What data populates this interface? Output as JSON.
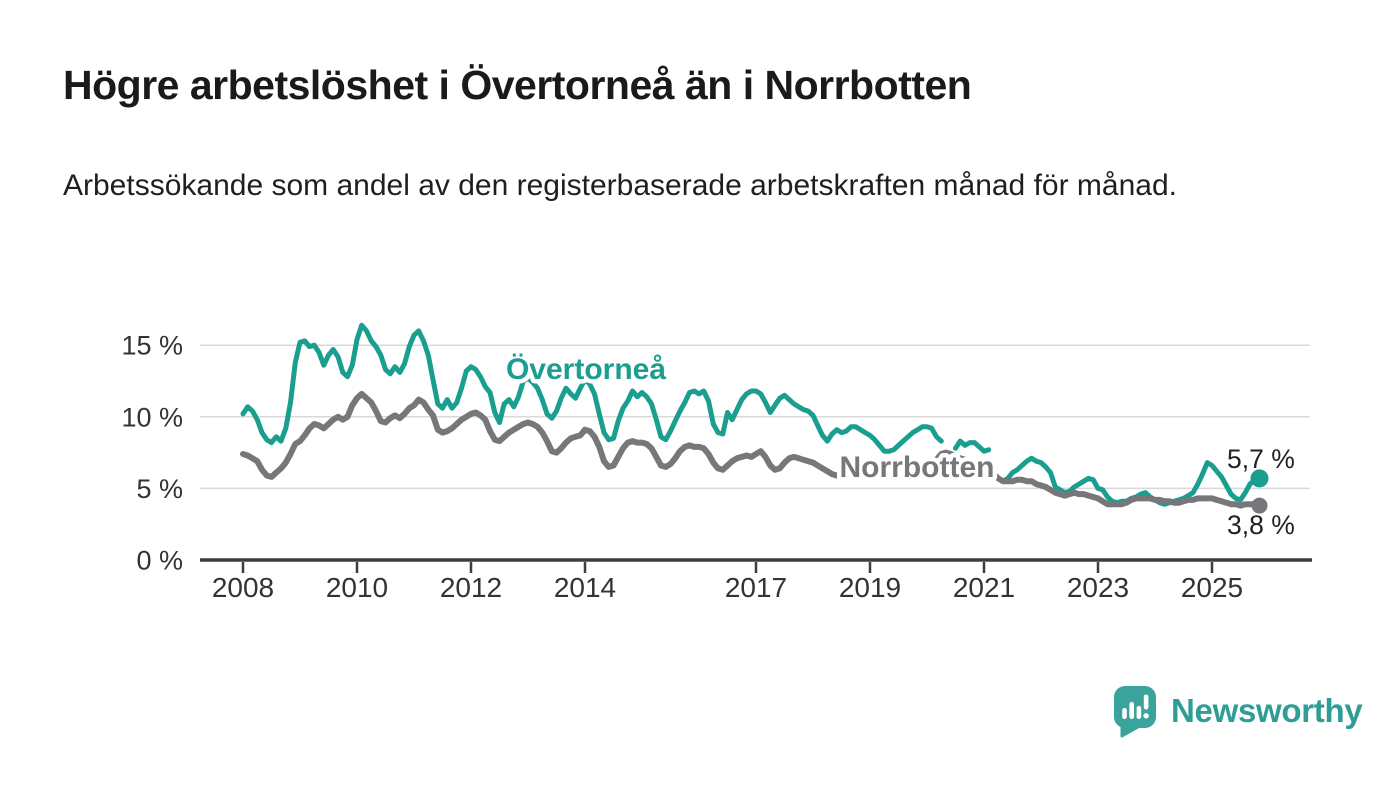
{
  "header": {
    "title": "Högre arbetslöshet i Övertorneå än i Norrbotten",
    "subtitle": "Arbetssökande som andel av den registerbaserade arbetskraften månad för månad."
  },
  "footer": {
    "brand": "Newsworthy",
    "logo_bubble_color": "#3aa39b",
    "brand_text_color": "#2e9d96"
  },
  "chart_data": {
    "type": "line",
    "frequency": "monthly",
    "start": {
      "year": 2008,
      "month": 1
    },
    "end": {
      "year": 2025,
      "month": 11
    },
    "unit": "%",
    "grid": "horizontal",
    "legend_position": "inline-labels",
    "y_axis": {
      "ticks": [
        {
          "value": 0,
          "label": "0 %"
        },
        {
          "value": 5,
          "label": "5 %"
        },
        {
          "value": 10,
          "label": "10 %"
        },
        {
          "value": 15,
          "label": "15 %"
        }
      ],
      "range": [
        0,
        17.5
      ]
    },
    "x_axis": {
      "tick_years": [
        2008,
        2010,
        2012,
        2014,
        2017,
        2019,
        2021,
        2023,
        2025
      ],
      "range_years": [
        2007.25,
        2026.75
      ]
    },
    "colors": {
      "grid": "#d9d9d9",
      "axis": "#3d3d3d",
      "tick_text": "#333333",
      "end_label_text": "#222222"
    },
    "series": [
      {
        "name": "Övertorneå",
        "color": "#1a9e8f",
        "end_label": "5,7 %",
        "end_value": 5.7,
        "values": [
          10.2,
          10.7,
          10.4,
          9.8,
          8.9,
          8.4,
          8.2,
          8.6,
          8.3,
          9.2,
          11.0,
          13.8,
          15.2,
          15.3,
          14.9,
          15.0,
          14.5,
          13.6,
          14.3,
          14.7,
          14.2,
          13.1,
          12.8,
          13.6,
          15.4,
          16.4,
          16.0,
          15.3,
          14.9,
          14.3,
          13.3,
          13.0,
          13.5,
          13.1,
          13.7,
          14.9,
          15.7,
          16.0,
          15.3,
          14.3,
          12.6,
          10.9,
          10.6,
          11.2,
          10.6,
          11.0,
          12.0,
          13.2,
          13.5,
          13.3,
          12.8,
          12.1,
          11.7,
          10.3,
          9.6,
          10.9,
          11.2,
          10.7,
          11.4,
          12.5,
          12.7,
          12.4,
          12.0,
          11.2,
          10.2,
          9.9,
          10.4,
          11.3,
          12.0,
          11.6,
          11.3,
          12.0,
          12.6,
          12.3,
          11.6,
          10.2,
          8.9,
          8.4,
          8.5,
          9.7,
          10.6,
          11.1,
          11.8,
          11.4,
          11.7,
          11.4,
          10.9,
          9.8,
          8.6,
          8.4,
          9.0,
          9.7,
          10.4,
          11.0,
          11.7,
          11.8,
          11.6,
          11.8,
          11.1,
          9.5,
          8.9,
          8.8,
          10.3,
          9.8,
          10.5,
          11.2,
          11.6,
          11.8,
          11.8,
          11.6,
          11.0,
          10.3,
          10.8,
          11.3,
          11.5,
          11.2,
          10.9,
          10.7,
          10.5,
          10.4,
          10.1,
          9.4,
          8.7,
          8.3,
          8.8,
          9.1,
          8.9,
          9.0,
          9.3,
          9.3,
          9.1,
          8.9,
          8.7,
          8.4,
          8.0,
          7.6,
          7.6,
          7.7,
          8.0,
          8.3,
          8.6,
          8.9,
          9.1,
          9.3,
          9.3,
          9.2,
          8.6,
          8.3,
          null,
          null,
          7.8,
          8.3,
          8.0,
          8.2,
          8.2,
          7.9,
          7.6,
          7.7,
          null,
          null,
          5.5,
          5.7,
          6.1,
          6.3,
          6.6,
          6.9,
          7.1,
          6.9,
          6.8,
          6.5,
          6.1,
          5.1,
          4.9,
          4.7,
          4.8,
          5.1,
          5.3,
          5.5,
          5.7,
          5.6,
          5.0,
          4.9,
          4.4,
          4.1,
          4.0,
          4.1,
          4.1,
          4.3,
          4.4,
          4.6,
          4.7,
          4.4,
          4.2,
          4.0,
          3.9,
          4.0,
          4.1,
          4.2,
          4.3,
          4.5,
          4.7,
          5.3,
          6.0,
          6.8,
          6.6,
          6.2,
          5.8,
          5.2,
          4.6,
          4.3,
          4.2,
          4.7,
          5.3,
          5.6,
          5.7
        ]
      },
      {
        "name": "Norrbotten",
        "color": "#77777b",
        "end_label": "3,8 %",
        "end_value": 3.8,
        "values": [
          7.4,
          7.3,
          7.1,
          6.9,
          6.3,
          5.9,
          5.8,
          6.1,
          6.4,
          6.8,
          7.4,
          8.1,
          8.3,
          8.7,
          9.2,
          9.5,
          9.4,
          9.2,
          9.5,
          9.8,
          10.0,
          9.8,
          10.0,
          10.8,
          11.3,
          11.6,
          11.3,
          11.0,
          10.4,
          9.7,
          9.6,
          9.9,
          10.1,
          9.9,
          10.2,
          10.6,
          10.8,
          11.2,
          11.0,
          10.5,
          10.1,
          9.1,
          8.9,
          9.0,
          9.2,
          9.5,
          9.8,
          10.0,
          10.2,
          10.3,
          10.1,
          9.8,
          9.0,
          8.4,
          8.3,
          8.6,
          8.9,
          9.1,
          9.3,
          9.5,
          9.6,
          9.5,
          9.3,
          8.9,
          8.3,
          7.6,
          7.5,
          7.8,
          8.2,
          8.5,
          8.6,
          8.7,
          9.1,
          9.0,
          8.6,
          7.9,
          6.9,
          6.5,
          6.6,
          7.2,
          7.8,
          8.2,
          8.3,
          8.2,
          8.2,
          8.1,
          7.8,
          7.2,
          6.6,
          6.5,
          6.7,
          7.1,
          7.6,
          7.9,
          8.0,
          7.9,
          7.9,
          7.8,
          7.4,
          6.8,
          6.4,
          6.3,
          6.6,
          6.9,
          7.1,
          7.2,
          7.3,
          7.2,
          7.4,
          7.6,
          7.2,
          6.6,
          6.3,
          6.4,
          6.8,
          7.1,
          7.2,
          7.1,
          7.0,
          6.9,
          6.8,
          6.6,
          6.4,
          6.2,
          6.0,
          5.9,
          6.0,
          6.1,
          6.2,
          6.1,
          6.2,
          6.4,
          6.5,
          6.4,
          6.3,
          6.1,
          5.9,
          5.9,
          6.0,
          6.1,
          6.2,
          6.3,
          6.4,
          6.6,
          6.7,
          6.7,
          7.0,
          7.4,
          7.5,
          7.4,
          7.2,
          7.1,
          7.0,
          6.8,
          6.7,
          6.6,
          6.4,
          6.2,
          6.0,
          5.7,
          5.5,
          5.5,
          5.5,
          5.6,
          5.6,
          5.5,
          5.5,
          5.3,
          5.2,
          5.1,
          4.9,
          4.7,
          4.6,
          4.5,
          4.6,
          4.7,
          4.6,
          4.6,
          4.5,
          4.4,
          4.3,
          4.1,
          3.9,
          3.9,
          3.9,
          3.9,
          4.0,
          4.2,
          4.3,
          4.3,
          4.3,
          4.3,
          4.2,
          4.2,
          4.1,
          4.1,
          4.0,
          4.0,
          4.1,
          4.2,
          4.2,
          4.3,
          4.3,
          4.3,
          4.3,
          4.2,
          4.1,
          4.0,
          3.9,
          3.9,
          3.8,
          3.9,
          3.9,
          3.9,
          3.8
        ]
      }
    ]
  }
}
